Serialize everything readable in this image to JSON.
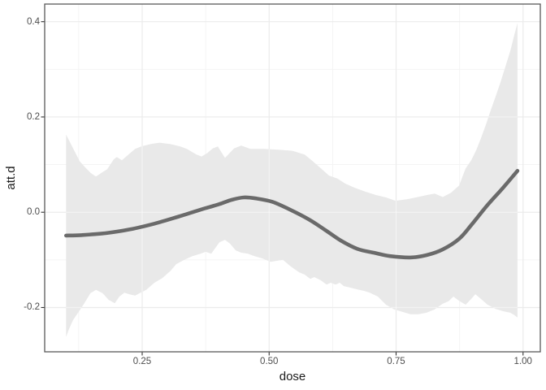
{
  "chart_data": {
    "type": "line",
    "title": "",
    "xlabel": "dose",
    "ylabel": "att.d",
    "xlim": [
      0.058,
      1.034
    ],
    "ylim": [
      -0.293,
      0.437
    ],
    "grid": "on",
    "legend": "none",
    "x_ticks": {
      "values": [
        0.25,
        0.5,
        0.75,
        1.0
      ],
      "labels": [
        "0.25",
        "0.50",
        "0.75",
        "1.00"
      ]
    },
    "x_minor_ticks": [
      0.125,
      0.375,
      0.625,
      0.875
    ],
    "y_ticks": {
      "values": [
        -0.2,
        0.0,
        0.2,
        0.4
      ],
      "labels": [
        "-0.2",
        "0.0",
        "0.2",
        "0.4"
      ]
    },
    "y_minor_ticks": [
      -0.1,
      0.1,
      0.3
    ],
    "series": [
      {
        "name": "smooth-fit",
        "type": "line",
        "color": "#6a6a6a",
        "stroke_width": 4.6,
        "points": [
          [
            0.1,
            -0.049
          ],
          [
            0.13,
            -0.048
          ],
          [
            0.178,
            -0.044
          ],
          [
            0.226,
            -0.036
          ],
          [
            0.274,
            -0.024
          ],
          [
            0.322,
            -0.009
          ],
          [
            0.37,
            0.007
          ],
          [
            0.402,
            0.017
          ],
          [
            0.426,
            0.026
          ],
          [
            0.45,
            0.031
          ],
          [
            0.474,
            0.029
          ],
          [
            0.506,
            0.022
          ],
          [
            0.538,
            0.007
          ],
          [
            0.578,
            -0.015
          ],
          [
            0.61,
            -0.037
          ],
          [
            0.642,
            -0.06
          ],
          [
            0.674,
            -0.077
          ],
          [
            0.706,
            -0.085
          ],
          [
            0.738,
            -0.092
          ],
          [
            0.778,
            -0.095
          ],
          [
            0.81,
            -0.09
          ],
          [
            0.842,
            -0.078
          ],
          [
            0.874,
            -0.056
          ],
          [
            0.898,
            -0.027
          ],
          [
            0.93,
            0.015
          ],
          [
            0.962,
            0.053
          ],
          [
            0.989,
            0.087
          ]
        ]
      }
    ],
    "ribbon": {
      "name": "confidence-band",
      "fill": "#e9e9e9",
      "upper": [
        [
          0.1,
          0.163
        ],
        [
          0.106,
          0.151
        ],
        [
          0.114,
          0.134
        ],
        [
          0.127,
          0.107
        ],
        [
          0.138,
          0.094
        ],
        [
          0.149,
          0.082
        ],
        [
          0.159,
          0.075
        ],
        [
          0.17,
          0.083
        ],
        [
          0.181,
          0.09
        ],
        [
          0.194,
          0.111
        ],
        [
          0.2,
          0.116
        ],
        [
          0.21,
          0.109
        ],
        [
          0.223,
          0.121
        ],
        [
          0.236,
          0.133
        ],
        [
          0.248,
          0.138
        ],
        [
          0.266,
          0.143
        ],
        [
          0.284,
          0.146
        ],
        [
          0.306,
          0.143
        ],
        [
          0.325,
          0.138
        ],
        [
          0.338,
          0.133
        ],
        [
          0.357,
          0.121
        ],
        [
          0.367,
          0.117
        ],
        [
          0.378,
          0.124
        ],
        [
          0.389,
          0.134
        ],
        [
          0.399,
          0.138
        ],
        [
          0.413,
          0.114
        ],
        [
          0.431,
          0.134
        ],
        [
          0.445,
          0.14
        ],
        [
          0.463,
          0.133
        ],
        [
          0.49,
          0.133
        ],
        [
          0.522,
          0.131
        ],
        [
          0.546,
          0.129
        ],
        [
          0.57,
          0.121
        ],
        [
          0.586,
          0.107
        ],
        [
          0.602,
          0.092
        ],
        [
          0.618,
          0.077
        ],
        [
          0.634,
          0.071
        ],
        [
          0.65,
          0.06
        ],
        [
          0.669,
          0.051
        ],
        [
          0.69,
          0.043
        ],
        [
          0.711,
          0.036
        ],
        [
          0.73,
          0.031
        ],
        [
          0.749,
          0.024
        ],
        [
          0.77,
          0.027
        ],
        [
          0.789,
          0.031
        ],
        [
          0.81,
          0.036
        ],
        [
          0.826,
          0.039
        ],
        [
          0.842,
          0.032
        ],
        [
          0.858,
          0.041
        ],
        [
          0.874,
          0.056
        ],
        [
          0.887,
          0.092
        ],
        [
          0.898,
          0.109
        ],
        [
          0.908,
          0.131
        ],
        [
          0.917,
          0.155
        ],
        [
          0.927,
          0.184
        ],
        [
          0.936,
          0.213
        ],
        [
          0.946,
          0.243
        ],
        [
          0.956,
          0.274
        ],
        [
          0.965,
          0.305
        ],
        [
          0.975,
          0.339
        ],
        [
          0.983,
          0.373
        ],
        [
          0.989,
          0.397
        ]
      ],
      "lower": [
        [
          0.1,
          -0.262
        ],
        [
          0.106,
          -0.245
        ],
        [
          0.114,
          -0.226
        ],
        [
          0.125,
          -0.209
        ],
        [
          0.136,
          -0.191
        ],
        [
          0.148,
          -0.17
        ],
        [
          0.159,
          -0.163
        ],
        [
          0.172,
          -0.17
        ],
        [
          0.184,
          -0.184
        ],
        [
          0.196,
          -0.191
        ],
        [
          0.205,
          -0.177
        ],
        [
          0.215,
          -0.169
        ],
        [
          0.224,
          -0.172
        ],
        [
          0.236,
          -0.175
        ],
        [
          0.245,
          -0.17
        ],
        [
          0.258,
          -0.163
        ],
        [
          0.274,
          -0.148
        ],
        [
          0.29,
          -0.138
        ],
        [
          0.306,
          -0.123
        ],
        [
          0.317,
          -0.109
        ],
        [
          0.333,
          -0.1
        ],
        [
          0.349,
          -0.092
        ],
        [
          0.365,
          -0.087
        ],
        [
          0.375,
          -0.083
        ],
        [
          0.386,
          -0.087
        ],
        [
          0.402,
          -0.063
        ],
        [
          0.413,
          -0.058
        ],
        [
          0.423,
          -0.066
        ],
        [
          0.434,
          -0.08
        ],
        [
          0.445,
          -0.085
        ],
        [
          0.458,
          -0.087
        ],
        [
          0.471,
          -0.092
        ],
        [
          0.487,
          -0.097
        ],
        [
          0.503,
          -0.104
        ],
        [
          0.527,
          -0.1
        ],
        [
          0.543,
          -0.114
        ],
        [
          0.559,
          -0.126
        ],
        [
          0.57,
          -0.131
        ],
        [
          0.581,
          -0.14
        ],
        [
          0.589,
          -0.136
        ],
        [
          0.602,
          -0.143
        ],
        [
          0.613,
          -0.152
        ],
        [
          0.621,
          -0.148
        ],
        [
          0.631,
          -0.152
        ],
        [
          0.639,
          -0.148
        ],
        [
          0.647,
          -0.155
        ],
        [
          0.658,
          -0.158
        ],
        [
          0.674,
          -0.162
        ],
        [
          0.687,
          -0.165
        ],
        [
          0.698,
          -0.169
        ],
        [
          0.714,
          -0.177
        ],
        [
          0.73,
          -0.194
        ],
        [
          0.746,
          -0.204
        ],
        [
          0.762,
          -0.209
        ],
        [
          0.778,
          -0.214
        ],
        [
          0.794,
          -0.214
        ],
        [
          0.81,
          -0.211
        ],
        [
          0.826,
          -0.204
        ],
        [
          0.842,
          -0.192
        ],
        [
          0.853,
          -0.187
        ],
        [
          0.863,
          -0.177
        ],
        [
          0.874,
          -0.186
        ],
        [
          0.887,
          -0.194
        ],
        [
          0.898,
          -0.182
        ],
        [
          0.906,
          -0.172
        ],
        [
          0.917,
          -0.182
        ],
        [
          0.93,
          -0.194
        ],
        [
          0.946,
          -0.203
        ],
        [
          0.962,
          -0.208
        ],
        [
          0.975,
          -0.211
        ],
        [
          0.983,
          -0.216
        ],
        [
          0.989,
          -0.221
        ]
      ]
    }
  },
  "style": {
    "background": "#ffffff",
    "panel_background": "#ffffff",
    "panel_border": "#595959",
    "grid_major": "#ebebeb",
    "grid_minor": "#f3f3f3",
    "grid_over_ribbon": "rgba(255,255,255,0.45)",
    "tick_mark_color": "#333333",
    "tick_label_color": "#4d4d4d",
    "axis_title_color": "#1a1a1a"
  }
}
